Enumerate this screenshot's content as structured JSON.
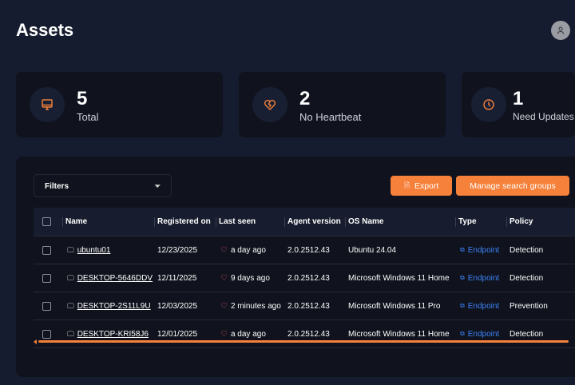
{
  "page": {
    "title": "Assets"
  },
  "stats": [
    {
      "value": "5",
      "label": "Total",
      "icon": "monitor-icon"
    },
    {
      "value": "2",
      "label": "No Heartbeat",
      "icon": "broken-heart-icon"
    },
    {
      "value": "1",
      "label": "Need Updates",
      "icon": "clock-icon"
    }
  ],
  "toolbar": {
    "filters_label": "Filters",
    "export_label": "Export",
    "manage_label": "Manage search groups"
  },
  "table": {
    "columns": [
      "Name",
      "Registered on",
      "Last seen",
      "Agent version",
      "OS Name",
      "Type",
      "Policy"
    ],
    "rows": [
      {
        "name": "ubuntu01",
        "registered": "12/23/2025",
        "last_seen": "a day ago",
        "agent": "2.0.2512.43",
        "os": "Ubuntu 24.04",
        "type": "Endpoint",
        "policy": "Detection"
      },
      {
        "name": "DESKTOP-5646DDV",
        "registered": "12/11/2025",
        "last_seen": "9 days ago",
        "agent": "2.0.2512.43",
        "os": "Microsoft Windows 11 Home",
        "type": "Endpoint",
        "policy": "Detection"
      },
      {
        "name": "DESKTOP-2S11L9U",
        "registered": "12/03/2025",
        "last_seen": "2 minutes ago",
        "agent": "2.0.2512.43",
        "os": "Microsoft Windows 11 Pro",
        "type": "Endpoint",
        "policy": "Prevention"
      },
      {
        "name": "DESKTOP-KRI58J6",
        "registered": "12/01/2025",
        "last_seen": "a day ago",
        "agent": "2.0.2512.43",
        "os": "Microsoft Windows 11 Home",
        "type": "Endpoint",
        "policy": "Detection"
      }
    ]
  },
  "colors": {
    "accent": "#f5813a",
    "link": "#3b82f6",
    "heart": "#e05a6a",
    "background": "#161c2f",
    "card": "#10131d"
  }
}
